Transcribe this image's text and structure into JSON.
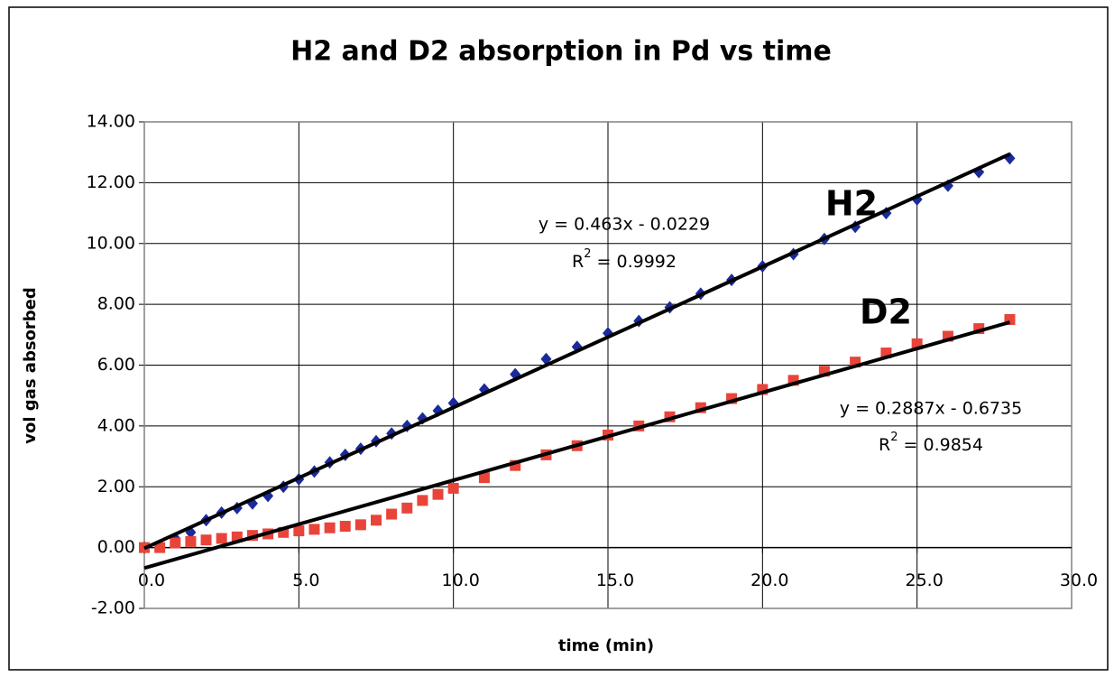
{
  "chart_data": {
    "type": "scatter",
    "title": "H2 and D2 absorption in Pd vs time",
    "x_label": "time (min)",
    "y_label": "vol gas absorbed",
    "xlim": [
      0,
      30
    ],
    "ylim": [
      -2,
      14
    ],
    "xticks": [
      {
        "value": 0,
        "label": "0.0"
      },
      {
        "value": 5,
        "label": "5.0"
      },
      {
        "value": 10,
        "label": "10.0"
      },
      {
        "value": 15,
        "label": "15.0"
      },
      {
        "value": 20,
        "label": "20.0"
      },
      {
        "value": 25,
        "label": "25.0"
      },
      {
        "value": 30,
        "label": "30.0"
      }
    ],
    "yticks": [
      {
        "value": -2,
        "label": "-2.00"
      },
      {
        "value": 0,
        "label": "0.00"
      },
      {
        "value": 2,
        "label": "2.00"
      },
      {
        "value": 4,
        "label": "4.00"
      },
      {
        "value": 6,
        "label": "6.00"
      },
      {
        "value": 8,
        "label": "8.00"
      },
      {
        "value": 10,
        "label": "10.00"
      },
      {
        "value": 12,
        "label": "12.00"
      },
      {
        "value": 14,
        "label": "14.00"
      }
    ],
    "grid": true,
    "series": [
      {
        "name": "H2",
        "color": "#1a2a9c",
        "marker": "diamond",
        "x": [
          0,
          0.5,
          1,
          1.5,
          2,
          2.5,
          3,
          3.5,
          4,
          4.5,
          5,
          5.5,
          6,
          6.5,
          7,
          7.5,
          8,
          8.5,
          9,
          9.5,
          10,
          11,
          12,
          13,
          14,
          15,
          16,
          17,
          18,
          19,
          20,
          21,
          22,
          23,
          24,
          25,
          26,
          27,
          28
        ],
        "values": [
          0,
          0.05,
          0.3,
          0.5,
          0.9,
          1.15,
          1.3,
          1.45,
          1.7,
          2.0,
          2.25,
          2.5,
          2.8,
          3.05,
          3.25,
          3.5,
          3.75,
          4.0,
          4.25,
          4.5,
          4.75,
          5.2,
          5.7,
          6.2,
          6.6,
          7.05,
          7.45,
          7.9,
          8.35,
          8.8,
          9.25,
          9.65,
          10.15,
          10.55,
          11.0,
          11.45,
          11.9,
          12.35,
          12.8
        ],
        "trendline": {
          "slope": 0.463,
          "intercept": -0.0229,
          "equation": "y = 0.463x - 0.0229",
          "r2": [
            "R",
            "2",
            " = 0.9992"
          ]
        }
      },
      {
        "name": "D2",
        "color": "#e8443a",
        "marker": "square",
        "x": [
          0,
          0.5,
          1,
          1.5,
          2,
          2.5,
          3,
          3.5,
          4,
          4.5,
          5,
          5.5,
          6,
          6.5,
          7,
          7.5,
          8,
          8.5,
          9,
          9.5,
          10,
          11,
          12,
          13,
          14,
          15,
          16,
          17,
          18,
          19,
          20,
          21,
          22,
          23,
          24,
          25,
          26,
          27,
          28
        ],
        "values": [
          0,
          0,
          0.15,
          0.2,
          0.25,
          0.3,
          0.35,
          0.4,
          0.45,
          0.5,
          0.55,
          0.6,
          0.65,
          0.7,
          0.75,
          0.9,
          1.1,
          1.3,
          1.55,
          1.75,
          1.95,
          2.3,
          2.7,
          3.05,
          3.35,
          3.7,
          4.0,
          4.3,
          4.6,
          4.9,
          5.2,
          5.5,
          5.8,
          6.1,
          6.4,
          6.7,
          6.95,
          7.2,
          7.5
        ],
        "trendline": {
          "slope": 0.2887,
          "intercept": -0.6735,
          "equation": "y = 0.2887x - 0.6735",
          "r2": [
            "R",
            "2",
            " = 0.9854"
          ]
        }
      }
    ]
  }
}
